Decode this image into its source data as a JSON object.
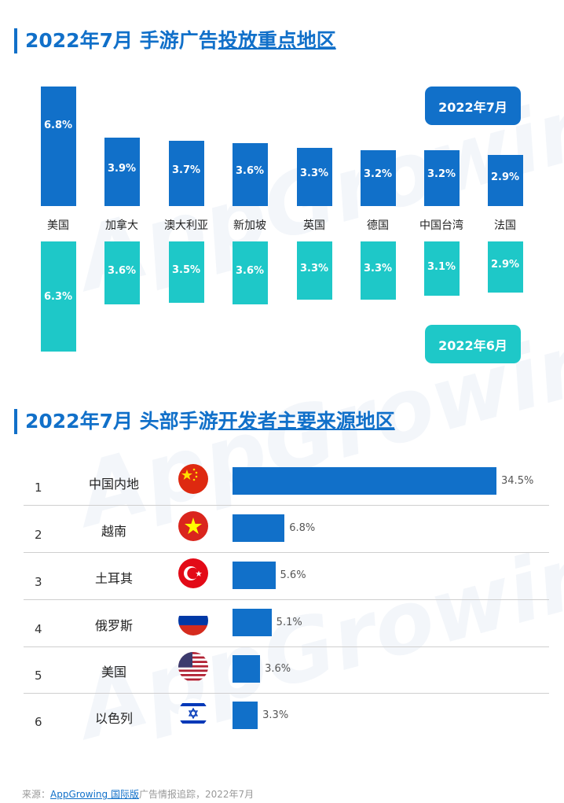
{
  "watermark": "AppGrowing",
  "chart_data": [
    {
      "type": "bar",
      "title_prefix": "2022年7月 手游广告",
      "title_underlined": "投放重点地区",
      "categories": [
        "美国",
        "加拿大",
        "澳大利亚",
        "新加坡",
        "英国",
        "德国",
        "中国台湾",
        "法国"
      ],
      "series": [
        {
          "name": "2022年7月",
          "color": "#1170c9",
          "values": [
            6.8,
            3.9,
            3.7,
            3.6,
            3.3,
            3.2,
            3.2,
            2.9
          ],
          "labels": [
            "6.8%",
            "3.9%",
            "3.7%",
            "3.6%",
            "3.3%",
            "3.2%",
            "3.2%",
            "2.9%"
          ]
        },
        {
          "name": "2022年6月",
          "color": "#1ec8c8",
          "values": [
            6.3,
            3.6,
            3.5,
            3.6,
            3.3,
            3.3,
            3.1,
            2.9
          ],
          "labels": [
            "6.3%",
            "3.6%",
            "3.5%",
            "3.6%",
            "3.3%",
            "3.3%",
            "3.1%",
            "2.9%"
          ]
        }
      ],
      "unit": "%"
    },
    {
      "type": "bar",
      "orientation": "horizontal",
      "title_prefix": "2022年7月 头部手游",
      "title_underlined": "开发者主要来源地区",
      "rows": [
        {
          "rank": "1",
          "name": "中国内地",
          "flag": "china-flag-icon",
          "value": 34.5,
          "label": "34.5%"
        },
        {
          "rank": "2",
          "name": "越南",
          "flag": "vietnam-flag-icon",
          "value": 6.8,
          "label": "6.8%"
        },
        {
          "rank": "3",
          "name": "土耳其",
          "flag": "turkey-flag-icon",
          "value": 5.6,
          "label": "5.6%"
        },
        {
          "rank": "4",
          "name": "俄罗斯",
          "flag": "russia-flag-icon",
          "value": 5.1,
          "label": "5.1%"
        },
        {
          "rank": "5",
          "name": "美国",
          "flag": "usa-flag-icon",
          "value": 3.6,
          "label": "3.6%"
        },
        {
          "rank": "6",
          "name": "以色列",
          "flag": "israel-flag-icon",
          "value": 3.3,
          "label": "3.3%"
        }
      ],
      "color": "#1170c9"
    }
  ],
  "footer": {
    "prefix": "来源：",
    "link": "AppGrowing 国际版",
    "suffix": "广告情报追踪，2022年7月"
  }
}
